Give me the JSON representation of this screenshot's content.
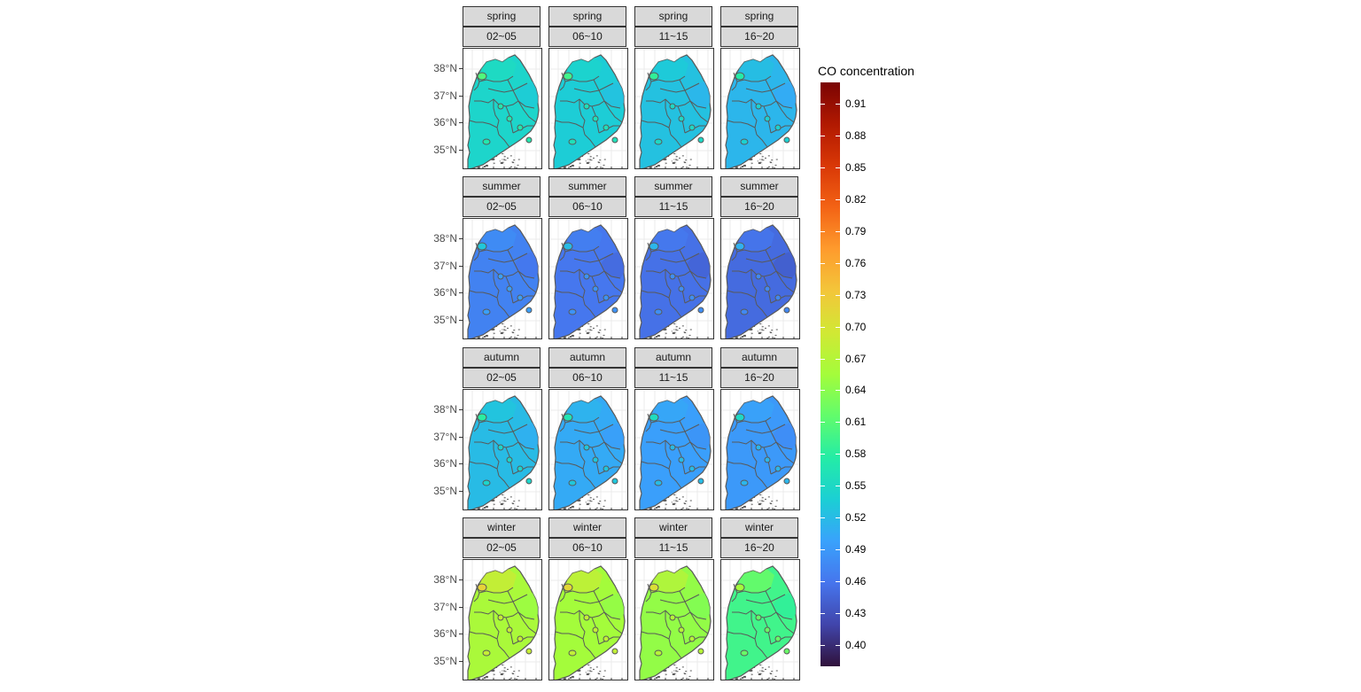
{
  "map": {
    "seasons": [
      "spring",
      "summer",
      "autumn",
      "winter"
    ],
    "periods": [
      "02~05",
      "06~10",
      "11~15",
      "16~20"
    ],
    "y_axis": {
      "unit": "latitude",
      "labels": [
        "38°N",
        "37°N",
        "36°N",
        "35°N"
      ],
      "values": [
        38,
        37,
        36,
        35
      ]
    },
    "legend": {
      "title": "CO concentration",
      "min": 0.38,
      "max": 0.93,
      "breaks": [
        "0.91",
        "0.88",
        "0.85",
        "0.82",
        "0.79",
        "0.76",
        "0.73",
        "0.70",
        "0.67",
        "0.64",
        "0.61",
        "0.58",
        "0.55",
        "0.52",
        "0.49",
        "0.46",
        "0.43",
        "0.40"
      ],
      "colormap": "turbo",
      "colors": [
        "#30123b",
        "#4145ab",
        "#4675ed",
        "#39a2fc",
        "#1bcfd4",
        "#24eca6",
        "#61fc6c",
        "#a4fc3b",
        "#d1e834",
        "#f3c63a",
        "#fe9b2d",
        "#f36315",
        "#d93806",
        "#b11901",
        "#7a0403"
      ]
    },
    "panel_mean_values": {
      "spring": [
        0.545,
        0.535,
        0.525,
        0.515
      ],
      "summer": [
        0.47,
        0.46,
        0.455,
        0.45
      ],
      "autumn": [
        0.52,
        0.505,
        0.495,
        0.49
      ],
      "winter": [
        0.66,
        0.655,
        0.645,
        0.595
      ]
    },
    "boundary_color": "#595959"
  }
}
